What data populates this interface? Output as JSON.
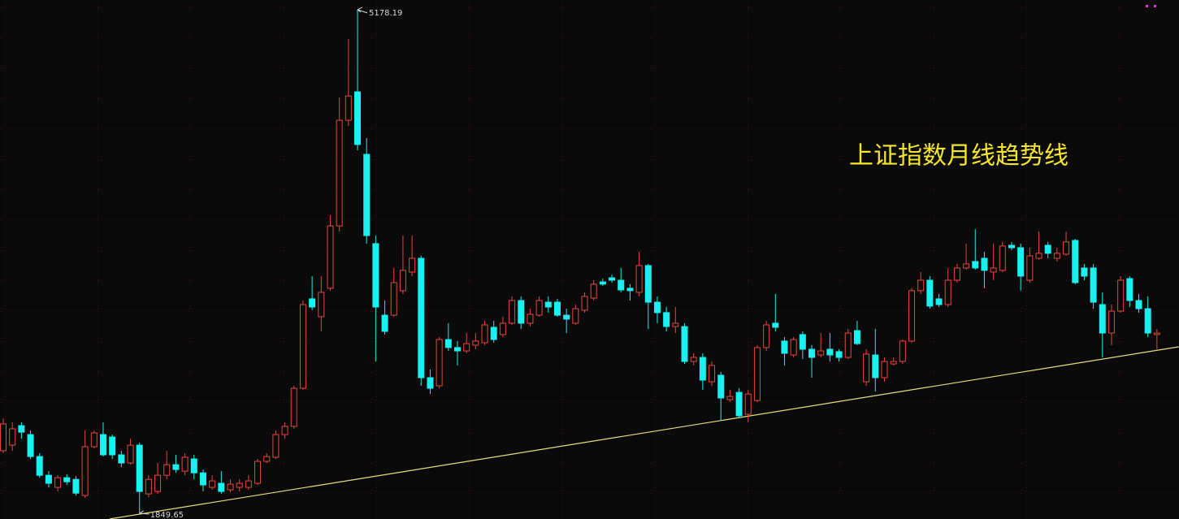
{
  "chart_data": {
    "type": "candlestick",
    "annotation": "上证指数月线趋势线",
    "max_label": 5178.19,
    "min_label": 1849.65,
    "up_color": "#e8463c",
    "down_color": "#19f0f0",
    "ylim": [
      1812,
      5242
    ],
    "open": [
      2263,
      2300,
      2429,
      2370,
      2225,
      2101,
      2021,
      2085,
      2074,
      1967,
      2290,
      2370,
      2354,
      2236,
      2182,
      2300,
      1978,
      1994,
      2101,
      2171,
      2128,
      2209,
      2117,
      2021,
      2048,
      2005,
      2021,
      2021,
      2048,
      2193,
      2220,
      2370,
      2424,
      2676,
      3267,
      3149,
      3337,
      3749,
      4447,
      4635,
      4222,
      3632,
      3159,
      3159,
      3321,
      3444,
      3535,
      2746,
      2692,
      2998,
      2945,
      2923,
      2961,
      2977,
      3079,
      3031,
      3106,
      3256,
      3106,
      3159,
      3245,
      3245,
      3159,
      3106,
      3192,
      3272,
      3379,
      3406,
      3390,
      3337,
      3310,
      3487,
      3245,
      3176,
      3084,
      3084,
      2853,
      2880,
      2719,
      2762,
      2601,
      2649,
      2504,
      2595,
      2945,
      3106,
      2988,
      2896,
      3031,
      2934,
      2896,
      2934,
      2918,
      2880,
      3057,
      2719,
      2896,
      2746,
      2837,
      2853,
      2988,
      3321,
      3390,
      3267,
      3229,
      3390,
      3471,
      3514,
      3535,
      3444,
      3455,
      3621,
      3605,
      3390,
      3535,
      3621,
      3535,
      3562,
      3653,
      3471,
      3471,
      3229,
      3041,
      3186,
      3401,
      3256,
      3202,
      3031
    ],
    "high": [
      2477,
      2451,
      2451,
      2397,
      2247,
      2128,
      2101,
      2107,
      2096,
      2397,
      2397,
      2451,
      2370,
      2263,
      2343,
      2316,
      2101,
      2182,
      2263,
      2236,
      2247,
      2236,
      2139,
      2101,
      2128,
      2074,
      2074,
      2101,
      2209,
      2247,
      2397,
      2451,
      2692,
      3256,
      3417,
      3417,
      3819,
      4598,
      4984,
      5178.19,
      4329,
      3685,
      3256,
      3471,
      3685,
      3685,
      3551,
      2800,
      3014,
      3106,
      2988,
      3041,
      3041,
      3122,
      3122,
      3149,
      3283,
      3283,
      3202,
      3283,
      3283,
      3267,
      3202,
      3229,
      3310,
      3390,
      3401,
      3428,
      3471,
      3364,
      3578,
      3498,
      3283,
      3213,
      3213,
      3106,
      2907,
      2907,
      2853,
      2784,
      2665,
      2676,
      2665,
      2961,
      3122,
      3299,
      3014,
      3014,
      3052,
      2961,
      3041,
      3041,
      2934,
      3068,
      3122,
      2934,
      3068,
      2880,
      2880,
      2998,
      3337,
      3444,
      3417,
      3299,
      3471,
      3498,
      3632,
      3728,
      3578,
      3632,
      3643,
      3643,
      3632,
      3605,
      3712,
      3643,
      3605,
      3712,
      3664,
      3498,
      3498,
      3310,
      3229,
      3417,
      3417,
      3299,
      3283,
      3068
    ],
    "low": [
      2247,
      2263,
      2343,
      2209,
      2085,
      2021,
      1994,
      2037,
      1967,
      1951,
      2279,
      2225,
      2209,
      2155,
      2171,
      1849.65,
      1956,
      1978,
      2074,
      2117,
      2101,
      2074,
      1994,
      2005,
      1978,
      1989,
      1994,
      2005,
      2037,
      2182,
      2209,
      2343,
      2408,
      2665,
      3192,
      3052,
      3321,
      3712,
      4410,
      4249,
      3632,
      2853,
      3031,
      3149,
      3299,
      3417,
      2692,
      2638,
      2676,
      2923,
      2827,
      2907,
      2934,
      2961,
      2977,
      3014,
      3095,
      3068,
      3084,
      3149,
      3176,
      3149,
      3041,
      3095,
      3176,
      3256,
      3353,
      3374,
      3310,
      3256,
      3283,
      3068,
      3106,
      3052,
      3041,
      2837,
      2827,
      2665,
      2692,
      2461,
      2585,
      2477,
      2451,
      2585,
      2923,
      3052,
      2827,
      2880,
      2869,
      2746,
      2880,
      2853,
      2853,
      2869,
      2961,
      2692,
      2655,
      2719,
      2827,
      2837,
      2977,
      3299,
      3202,
      3213,
      3213,
      3374,
      3460,
      3460,
      3337,
      3390,
      3444,
      3589,
      3321,
      3374,
      3525,
      3535,
      3514,
      3551,
      3364,
      3390,
      3202,
      2880,
      2961,
      3176,
      3213,
      3176,
      3014,
      2934
    ],
    "close": [
      2440,
      2408,
      2386,
      2225,
      2101,
      2048,
      2085,
      2058,
      1983,
      2290,
      2381,
      2236,
      2236,
      2182,
      2300,
      1994,
      2074,
      2101,
      2171,
      2139,
      2220,
      2117,
      2037,
      2064,
      1994,
      2042,
      2048,
      2064,
      2193,
      2225,
      2370,
      2424,
      2676,
      3229,
      3213,
      3310,
      3749,
      4447,
      4608,
      4287,
      3685,
      3213,
      3052,
      3374,
      3455,
      3535,
      2746,
      2676,
      2998,
      2945,
      2923,
      2971,
      2988,
      3095,
      2998,
      3106,
      3256,
      3106,
      3165,
      3256,
      3213,
      3159,
      3133,
      3202,
      3283,
      3364,
      3364,
      3390,
      3326,
      3321,
      3487,
      3245,
      3176,
      3084,
      3106,
      2853,
      2880,
      2730,
      2827,
      2612,
      2622,
      2494,
      2638,
      2945,
      3095,
      3079,
      2907,
      2998,
      2934,
      2880,
      2923,
      2896,
      2880,
      3041,
      2971,
      2902,
      2746,
      2853,
      2853,
      2988,
      3321,
      3390,
      3219,
      3229,
      3390,
      3471,
      3498,
      3471,
      3455,
      3471,
      3616,
      3605,
      3417,
      3551,
      3568,
      3568,
      3568,
      3643,
      3374,
      3417,
      3245,
      3041,
      3186,
      3390,
      3256,
      3202,
      3041,
      3041
    ],
    "trendline": {
      "color": "#e8e07a",
      "x": [
        11.7,
        129.4
      ],
      "values": [
        1812,
        2950
      ]
    }
  }
}
